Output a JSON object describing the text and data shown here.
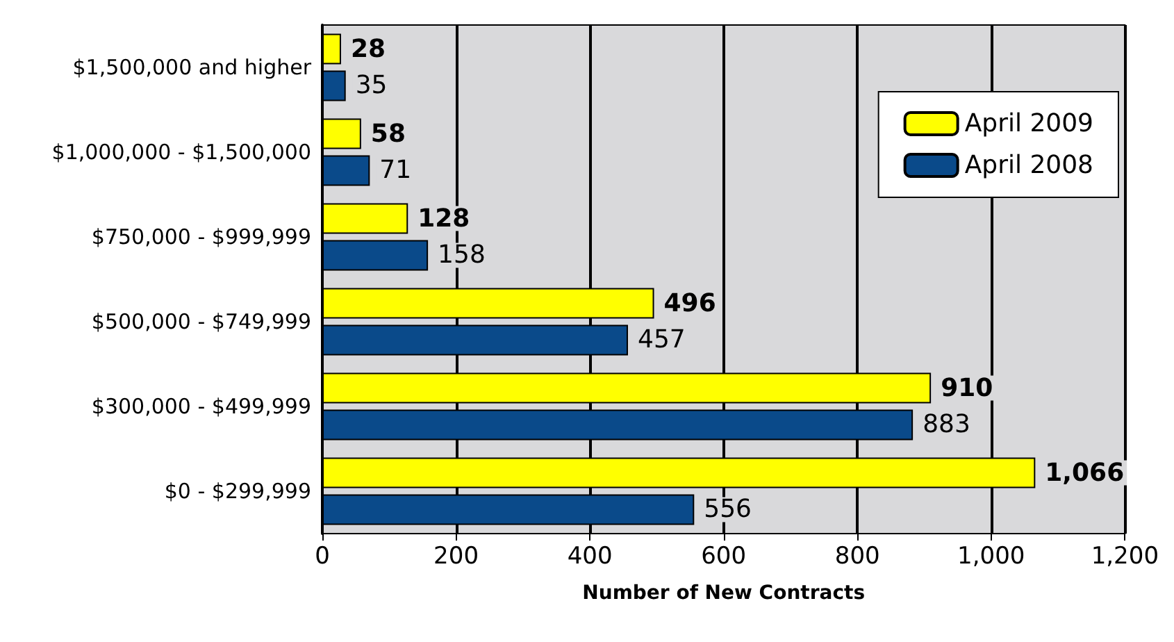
{
  "chart_data": {
    "type": "bar",
    "orientation": "horizontal",
    "xlabel": "Number of New Contracts",
    "categories": [
      "$1,500,000 and higher",
      "$1,000,000 - $1,500,000",
      "$750,000 - $999,999",
      "$500,000 - $749,999",
      "$300,000 - $499,999",
      "$0 - $299,999"
    ],
    "series": [
      {
        "name": "April 2009",
        "color": "#ffff00",
        "values": [
          28,
          58,
          128,
          496,
          910,
          1066
        ],
        "value_labels": [
          "28",
          "58",
          "128",
          "496",
          "910",
          "1,066"
        ]
      },
      {
        "name": "April 2008",
        "color": "#0a4a8a",
        "values": [
          35,
          71,
          158,
          457,
          883,
          556
        ],
        "value_labels": [
          "35",
          "71",
          "158",
          "457",
          "883",
          "556"
        ]
      }
    ],
    "xlim": [
      0,
      1200
    ],
    "xticks": [
      0,
      200,
      400,
      600,
      800,
      {
        "value": 1000,
        "label": "1,000"
      },
      {
        "value": 1200,
        "label": "1,200"
      }
    ],
    "grid": "x",
    "legend": "top right"
  }
}
